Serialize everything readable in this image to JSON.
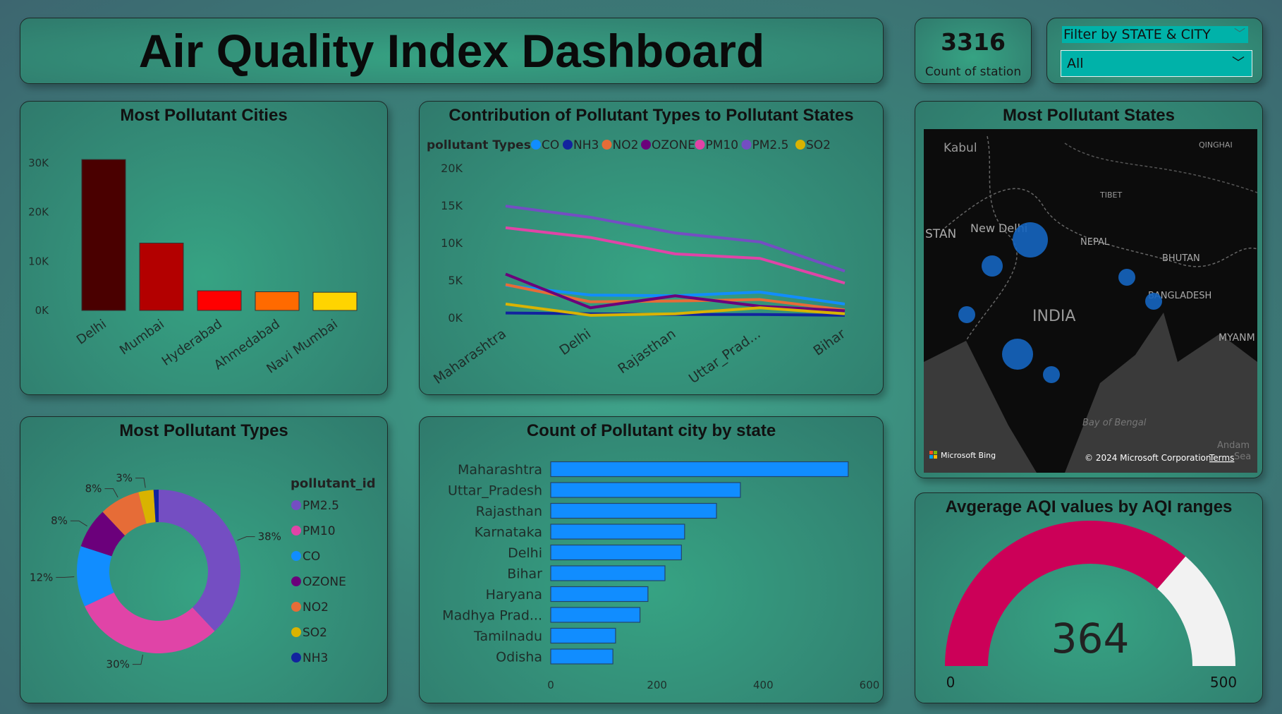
{
  "header": {
    "title": "Air Quality Index Dashboard"
  },
  "kpi": {
    "value": "3316",
    "label": "Count of station"
  },
  "filter": {
    "title": "Filter by STATE & CITY",
    "selected": "All",
    "icon": "chevron-down-icon"
  },
  "colors": {
    "CO": "#118dff",
    "NH3": "#12239e",
    "NO2": "#e66c37",
    "OZONE": "#6b007b",
    "PM10": "#e044a7",
    "PM2.5": "#744ec2",
    "SO2": "#d9b300"
  },
  "chart_data": [
    {
      "type": "bar",
      "title": "Most Pollutant Cities",
      "categories": [
        "Delhi",
        "Mumbai",
        "Hyderabad",
        "Ahmedabad",
        "Navi Mumbai"
      ],
      "values": [
        30700,
        13700,
        4000,
        3800,
        3700
      ],
      "colors": [
        "#4a0000",
        "#b30000",
        "#ff0000",
        "#ff6a00",
        "#ffd400"
      ],
      "yticks": [
        "0K",
        "10K",
        "20K",
        "30K"
      ],
      "ylim": [
        0,
        30000
      ],
      "grid": false
    },
    {
      "type": "line",
      "title": "Contribution of Pollutant Types to Pollutant States",
      "legend_title": "pollutant Types",
      "categories": [
        "Maharashtra",
        "Delhi",
        "Rajasthan",
        "Uttar_Prad...",
        "Bihar"
      ],
      "yticks": [
        "0K",
        "5K",
        "10K",
        "15K",
        "20K"
      ],
      "ylim": [
        0,
        20000
      ],
      "legend": "top-left",
      "series": [
        {
          "name": "CO",
          "values": [
            4300,
            3000,
            2900,
            3400,
            1800
          ]
        },
        {
          "name": "NH3",
          "values": [
            600,
            500,
            400,
            400,
            300
          ]
        },
        {
          "name": "NO2",
          "values": [
            4400,
            2100,
            2200,
            2400,
            1000
          ]
        },
        {
          "name": "OZONE",
          "values": [
            5800,
            1300,
            2900,
            1500,
            900
          ]
        },
        {
          "name": "PM10",
          "values": [
            12000,
            10700,
            8500,
            7900,
            4600
          ]
        },
        {
          "name": "PM2.5",
          "values": [
            14900,
            13400,
            11300,
            10100,
            6200
          ]
        },
        {
          "name": "SO2",
          "values": [
            1800,
            300,
            500,
            1300,
            500
          ]
        }
      ]
    },
    {
      "type": "pie",
      "title": "Most Pollutant Types",
      "legend_title": "pollutant_id",
      "legend": "right",
      "donut": true,
      "categories": [
        "PM2.5",
        "PM10",
        "CO",
        "OZONE",
        "NO2",
        "SO2",
        "NH3"
      ],
      "values": [
        38,
        30,
        12,
        8,
        8,
        3,
        1
      ],
      "labels": [
        "38%",
        "30%",
        "12%",
        "8%",
        "8%",
        "3%",
        ""
      ]
    },
    {
      "type": "bar",
      "orientation": "horizontal",
      "title": "Count of Pollutant city by state",
      "categories": [
        "Maharashtra",
        "Uttar_Pradesh",
        "Rajasthan",
        "Karnataka",
        "Delhi",
        "Bihar",
        "Haryana",
        "Madhya Prad...",
        "Tamilnadu",
        "Odisha"
      ],
      "values": [
        560,
        357,
        312,
        252,
        246,
        215,
        183,
        168,
        122,
        117
      ],
      "xlim": [
        0,
        600
      ],
      "xticks": [
        "0",
        "200",
        "400",
        "600"
      ],
      "color": "#118dff"
    },
    {
      "type": "gauge",
      "title": "Avgerage AQI values by AQI ranges",
      "value": 364,
      "min": 0,
      "max": 500,
      "value_label": "364",
      "min_label": "0",
      "max_label": "500",
      "fill_color": "#cc0058",
      "track_color": "#f2f2f2"
    }
  ],
  "map": {
    "title": "Most Pollutant States",
    "labels": [
      "Kabul",
      "QINGHAI",
      "TIBET",
      "STAN",
      "New Delhi",
      "NEPAL",
      "BHUTAN",
      "BANGLADESH",
      "INDIA",
      "MYANM",
      "Bay of Bengal",
      "Andam",
      "Sea"
    ],
    "attribution": "Microsoft Bing",
    "copyright": "© 2024 Microsoft Corporation",
    "terms": "Terms",
    "bubble_color": "#1565c0"
  }
}
